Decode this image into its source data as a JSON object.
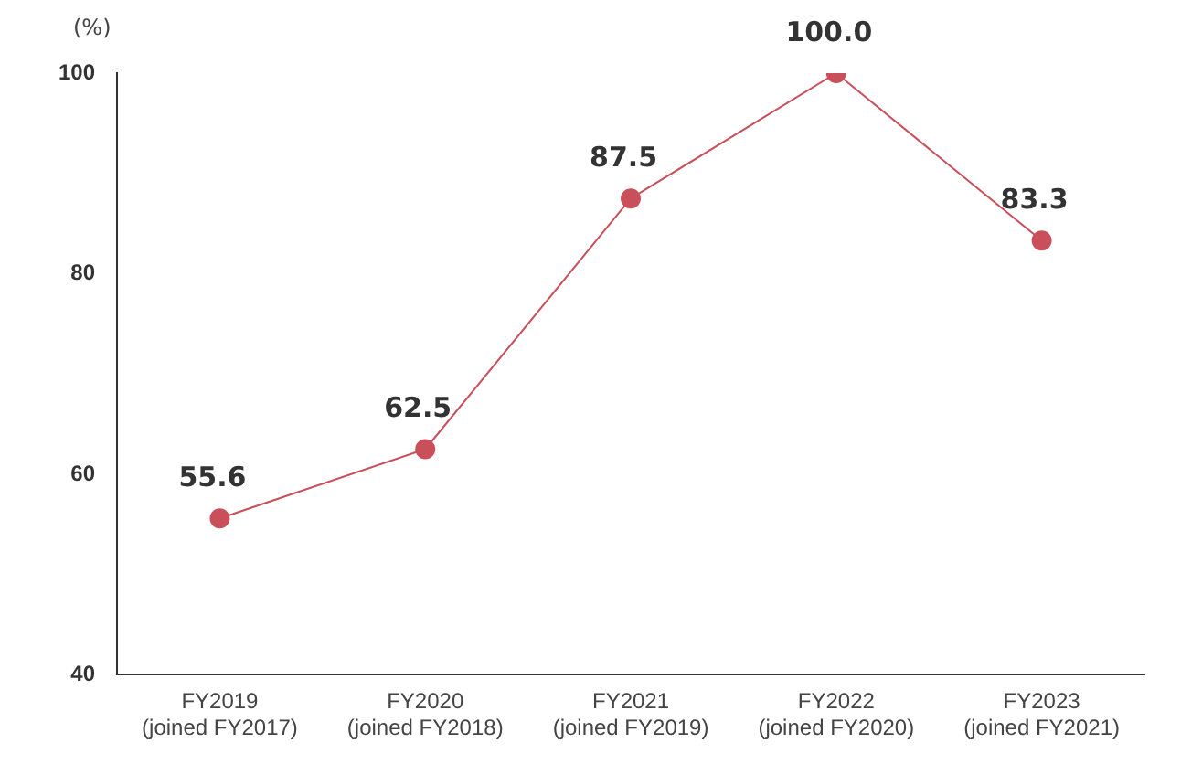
{
  "chart_data": {
    "type": "line",
    "ylabel": "(%)",
    "categories": [
      "FY2019\n(joined FY2017)",
      "FY2020\n(joined FY2018)",
      "FY2021\n(joined FY2019)",
      "FY2022\n(joined FY2020)",
      "FY2023\n(joined FY2021)"
    ],
    "series": [
      {
        "color": "#c9505b",
        "values": [
          55.6,
          62.5,
          87.5,
          100.0,
          83.3
        ],
        "value_labels": [
          "55.6",
          "62.5",
          "87.5",
          "100.0",
          "83.3"
        ]
      }
    ],
    "ylim": [
      40,
      100
    ],
    "yticks": [
      40,
      60,
      80,
      100
    ],
    "grid": false,
    "legend": false,
    "marker": "circle",
    "line_style": "solid"
  }
}
